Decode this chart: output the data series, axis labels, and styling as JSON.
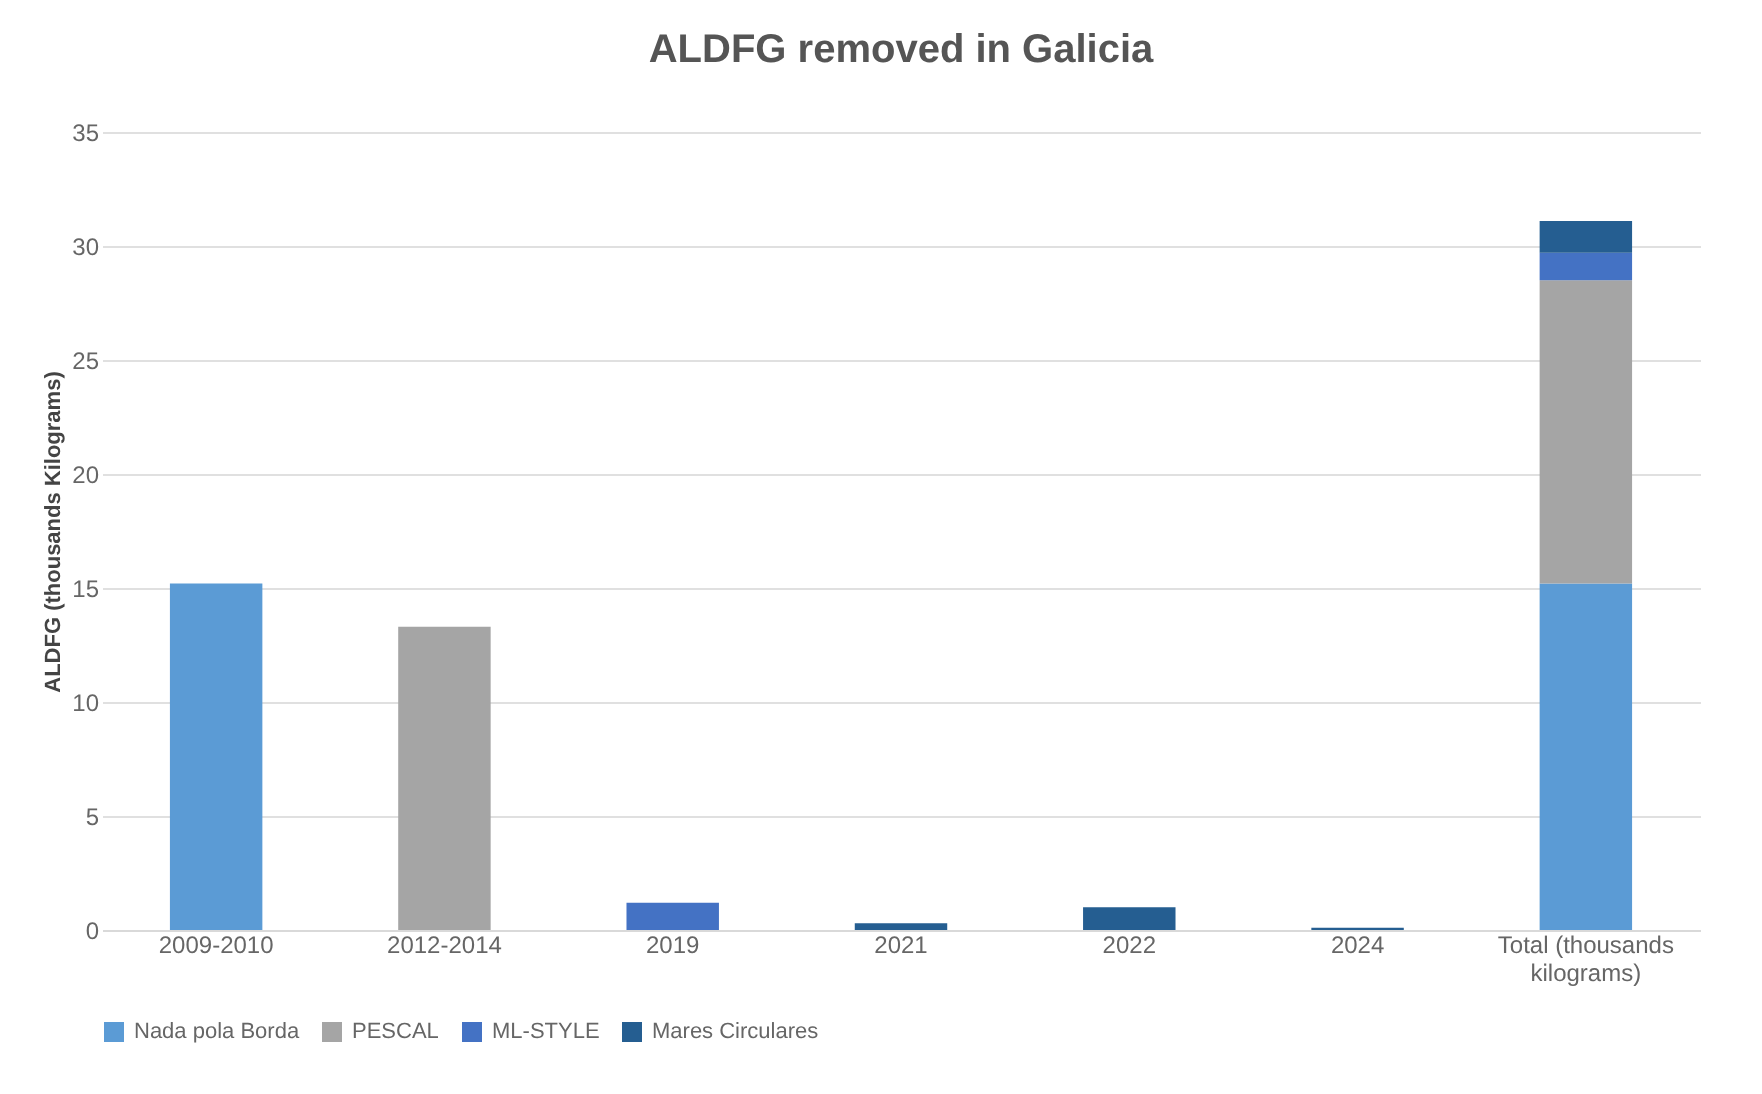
{
  "chart_data": {
    "type": "bar",
    "title": "ALDFG removed in Galicia",
    "ylabel": "ALDFG (thousands Kilograms)",
    "categories": [
      "2009-2010",
      "2012-2014",
      "2019",
      "2021",
      "2022",
      "2024",
      "Total (thousands kilograms)"
    ],
    "stacked": true,
    "series": [
      {
        "name": "Nada pola Borda",
        "color": "#5b9bd5",
        "values": [
          15.2,
          0,
          0,
          0,
          0,
          0,
          15.2
        ]
      },
      {
        "name": "PESCAL",
        "color": "#a5a5a5",
        "values": [
          0,
          13.3,
          0,
          0,
          0,
          0,
          13.3
        ]
      },
      {
        "name": "ML-STYLE",
        "color": "#4472c4",
        "values": [
          0,
          0,
          1.2,
          0,
          0,
          0,
          1.2
        ]
      },
      {
        "name": "Mares Circulares",
        "color": "#255e91",
        "values": [
          0,
          0,
          0,
          0.3,
          1.0,
          0.1,
          1.4
        ]
      }
    ],
    "ylim": [
      0,
      35
    ],
    "yticks": [
      0,
      5,
      10,
      15,
      20,
      25,
      30,
      35
    ],
    "grid": "y",
    "legend": "bottom"
  }
}
